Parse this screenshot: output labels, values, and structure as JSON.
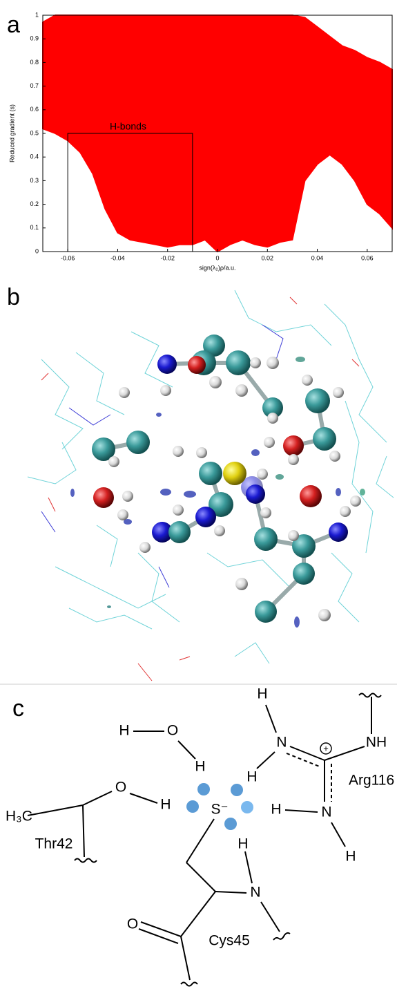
{
  "panel_labels": [
    "a",
    "b",
    "c"
  ],
  "chart_data": {
    "type": "area",
    "xlabel": "sign(λ₂)ρ/a.u.",
    "ylabel": "Reduced gradient (s)",
    "color": "#ff0000",
    "x": [
      -0.07,
      -0.065,
      -0.06,
      -0.055,
      -0.05,
      -0.045,
      -0.04,
      -0.035,
      -0.03,
      -0.025,
      -0.02,
      -0.015,
      -0.01,
      -0.005,
      0,
      0.005,
      0.01,
      0.015,
      0.02,
      0.025,
      0.03,
      0.035,
      0.04,
      0.045,
      0.05,
      0.055,
      0.06,
      0.065,
      0.07
    ],
    "upper": [
      0.97,
      1,
      1,
      1,
      1,
      1,
      1,
      1,
      1,
      1,
      1,
      1,
      1,
      1,
      1,
      1,
      1,
      1,
      1,
      1,
      1,
      0.99,
      0.95,
      0.91,
      0.87,
      0.85,
      0.82,
      0.8,
      0.77
    ],
    "lower": [
      0.52,
      0.5,
      0.47,
      0.42,
      0.33,
      0.18,
      0.08,
      0.05,
      0.04,
      0.03,
      0.02,
      0.03,
      0.03,
      0.05,
      0,
      0.03,
      0.05,
      0.03,
      0.02,
      0.04,
      0.05,
      0.3,
      0.37,
      0.41,
      0.37,
      0.3,
      0.2,
      0.16,
      0.1
    ],
    "xlim": [
      -0.07,
      0.07
    ],
    "ylim": [
      0,
      1
    ],
    "xticks": [
      -0.06,
      -0.04,
      -0.02,
      0,
      0.02,
      0.04,
      0.06
    ],
    "yticks": [
      0,
      0.1,
      0.2,
      0.3,
      0.4,
      0.5,
      0.6,
      0.7,
      0.8,
      0.9,
      1
    ],
    "annotation": {
      "text": "H-bonds",
      "x": [
        -0.06,
        -0.01
      ],
      "y": [
        0,
        0.5
      ]
    }
  },
  "diagram": {
    "labels": [
      "H",
      "O",
      "H",
      "H",
      "N",
      "+",
      "NH",
      "H",
      "Arg116",
      "H",
      "N",
      "H",
      "H₃C",
      "O",
      "H",
      "Thr42",
      "S⁻",
      "H",
      "N",
      "O",
      "Cys45"
    ]
  }
}
